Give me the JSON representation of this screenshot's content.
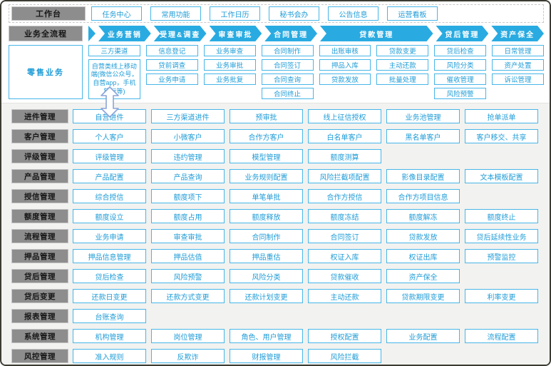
{
  "colors": {
    "accent_blue": "#29abe2",
    "button_border": "#47b6e8",
    "button_text": "#1f9cd7",
    "label_gray": "#8d8d8d",
    "main_background": "#f2f2f0",
    "outer_border": "#3c3c33"
  },
  "icons": {
    "channel_link": "double-vertical-arrow"
  },
  "workbench": {
    "label": "工作台",
    "items": [
      "任务中心",
      "常用功能",
      "工作日历",
      "秘书会办",
      "公告信息",
      "运营看板"
    ]
  },
  "process_flow": {
    "label": "业务全流程",
    "steps": [
      {
        "label": "业务营销",
        "wide": false
      },
      {
        "label": "受理&调查",
        "wide": false
      },
      {
        "label": "审查审批",
        "wide": false
      },
      {
        "label": "合同管理",
        "wide": false
      },
      {
        "label": "贷款管理",
        "wide": true
      },
      {
        "label": "贷后管理",
        "wide": false
      },
      {
        "label": "资产保全",
        "wide": false
      }
    ]
  },
  "retail": {
    "label": "零售业务",
    "columns": [
      [
        "三方渠道",
        {
          "text": "自营类线上移动端(微信公众号，自营app，手机银行等)"
        }
      ],
      [
        "信息登记",
        "贷前调查",
        "业务申请"
      ],
      [
        "业务审查",
        "业务审批",
        "业务批复"
      ],
      [
        "合同制作",
        "合同签订",
        "合同查询",
        "合同终止"
      ],
      [
        "出账审核",
        "押品入库",
        "贷款发放"
      ],
      [
        "贷款变更",
        "主动还款",
        "批量处理"
      ],
      [
        "贷后检查",
        "风险分类",
        "催收管理",
        "风险预警"
      ],
      [
        "日常管理",
        "资产处置",
        "诉讼管理"
      ]
    ]
  },
  "modules": [
    {
      "label": "进件管理",
      "items": [
        "自营进件",
        "三方渠道进件",
        "预审批",
        "线上征信授权",
        "业务池管理",
        "抢单派单"
      ]
    },
    {
      "label": "客户管理",
      "items": [
        "个人客户",
        "小微客户",
        "合作方客户",
        "白名单客户",
        "黑名单客户",
        "客户移交、共享"
      ]
    },
    {
      "label": "评级管理",
      "items": [
        "评级管理",
        "违约管理",
        "模型管理",
        "额度测算"
      ]
    },
    {
      "label": "产品管理",
      "items": [
        "产品配置",
        "产品查询",
        "业务规则配置",
        "风险拦截项配置",
        "影像目录配置",
        "文本模板配置"
      ]
    },
    {
      "label": "授信管理",
      "items": [
        "综合授信",
        "额度项下",
        "单笔单批",
        "合作方授信",
        "合作方项目信息"
      ]
    },
    {
      "label": "额度管理",
      "items": [
        "额度设立",
        "额度占用",
        "额度释放",
        "额度冻结",
        "额度解冻",
        "额度终止"
      ]
    },
    {
      "label": "流程管理",
      "items": [
        "业务申请",
        "审查审批",
        "合同制作",
        "合同签订",
        "贷款发放",
        "贷后延续性业务"
      ]
    },
    {
      "label": "押品管理",
      "items": [
        "押品信息管理",
        "押品估值",
        "押品重估",
        "权证入库",
        "权证出库",
        "预警监控"
      ]
    },
    {
      "label": "贷后管理",
      "items": [
        "贷后检查",
        "风险预警",
        "风险分类",
        "贷款催收",
        "资产保全"
      ]
    },
    {
      "label": "贷后变更",
      "items": [
        "还款日变更",
        "还款方式变更",
        "还款计划变更",
        "主动还款",
        "贷款期限变更",
        "利率变更"
      ]
    },
    {
      "label": "报表管理",
      "items": [
        "台账查询"
      ]
    },
    {
      "label": "系统管理",
      "items": [
        "机构管理",
        "岗位管理",
        "角色、用户管理",
        "授权配置",
        "业务配置",
        "流程配置"
      ]
    },
    {
      "label": "风控管理",
      "items": [
        "准入规则",
        "反欺诈",
        "财报管理",
        "风险拦截"
      ]
    }
  ]
}
